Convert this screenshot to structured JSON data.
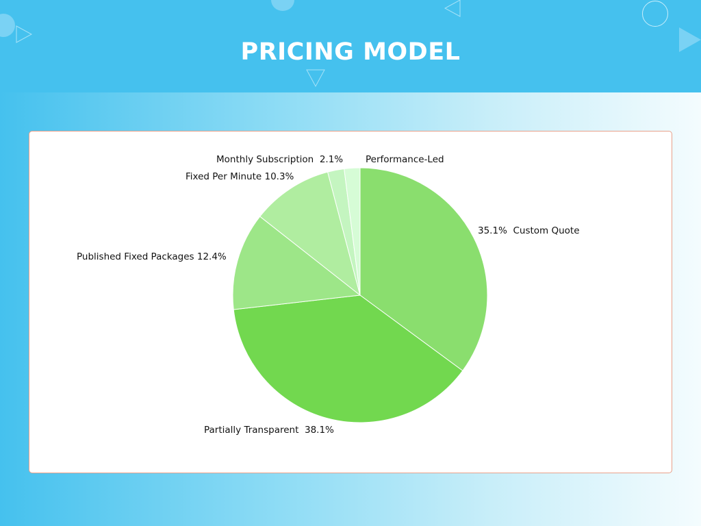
{
  "header": {
    "title": "PRICING MODEL"
  },
  "chart_data": {
    "type": "pie",
    "title": "PRICING MODEL",
    "slices": [
      {
        "label": "Custom Quote",
        "value": 35.1,
        "value_label": "35.1%",
        "color": "#8ade6e"
      },
      {
        "label": "Partially Transparent",
        "value": 38.1,
        "value_label": "38.1%",
        "color": "#72d84f"
      },
      {
        "label": "Published Fixed Packages",
        "value": 12.4,
        "value_label": "12.4%",
        "color": "#9de688"
      },
      {
        "label": "Fixed Per Minute",
        "value": 10.3,
        "value_label": "10.3%",
        "color": "#b0eda0"
      },
      {
        "label": "Monthly Subscription",
        "value": 2.1,
        "value_label": "2.1%",
        "color": "#c4f5c0"
      },
      {
        "label": "Performance-Led",
        "value": 2.0,
        "value_label": "",
        "color": "#d6fcd6"
      }
    ],
    "start": "top",
    "direction": "clockwise"
  }
}
